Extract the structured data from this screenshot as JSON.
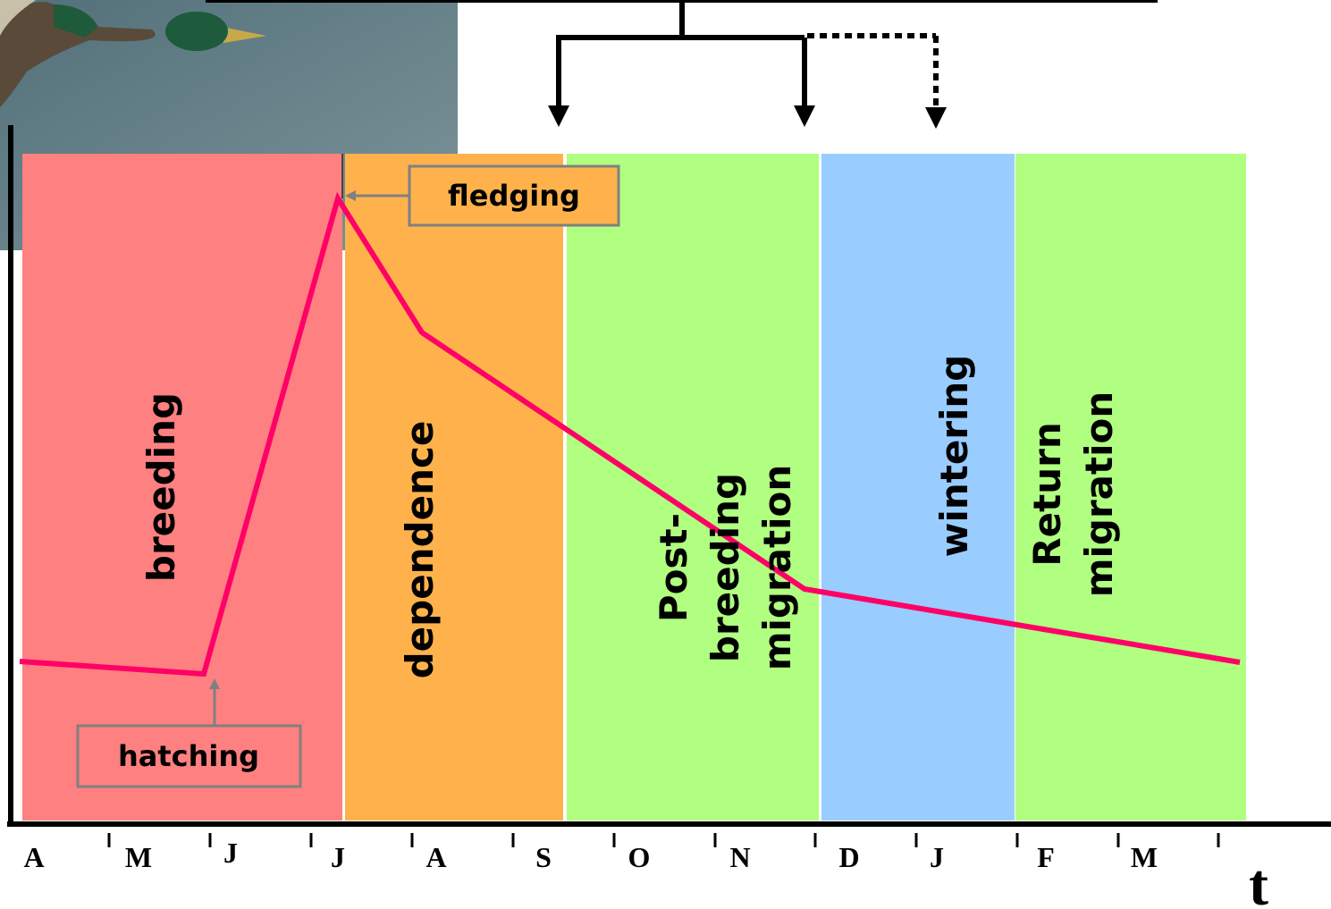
{
  "phases": [
    {
      "lines": [
        "breeding"
      ]
    },
    {
      "lines": [
        "dependence"
      ]
    },
    {
      "lines": [
        "Post-",
        "breeding",
        "migration"
      ]
    },
    {
      "lines": [
        "wintering"
      ]
    },
    {
      "lines": [
        "Return",
        "migration"
      ]
    }
  ],
  "events": {
    "fledging": "fledging",
    "hatching": "hatching"
  },
  "months": [
    "A",
    "M",
    "J",
    "J",
    "A",
    "S",
    "O",
    "N",
    "D",
    "J",
    "F",
    "M"
  ],
  "axis_label": "t"
}
